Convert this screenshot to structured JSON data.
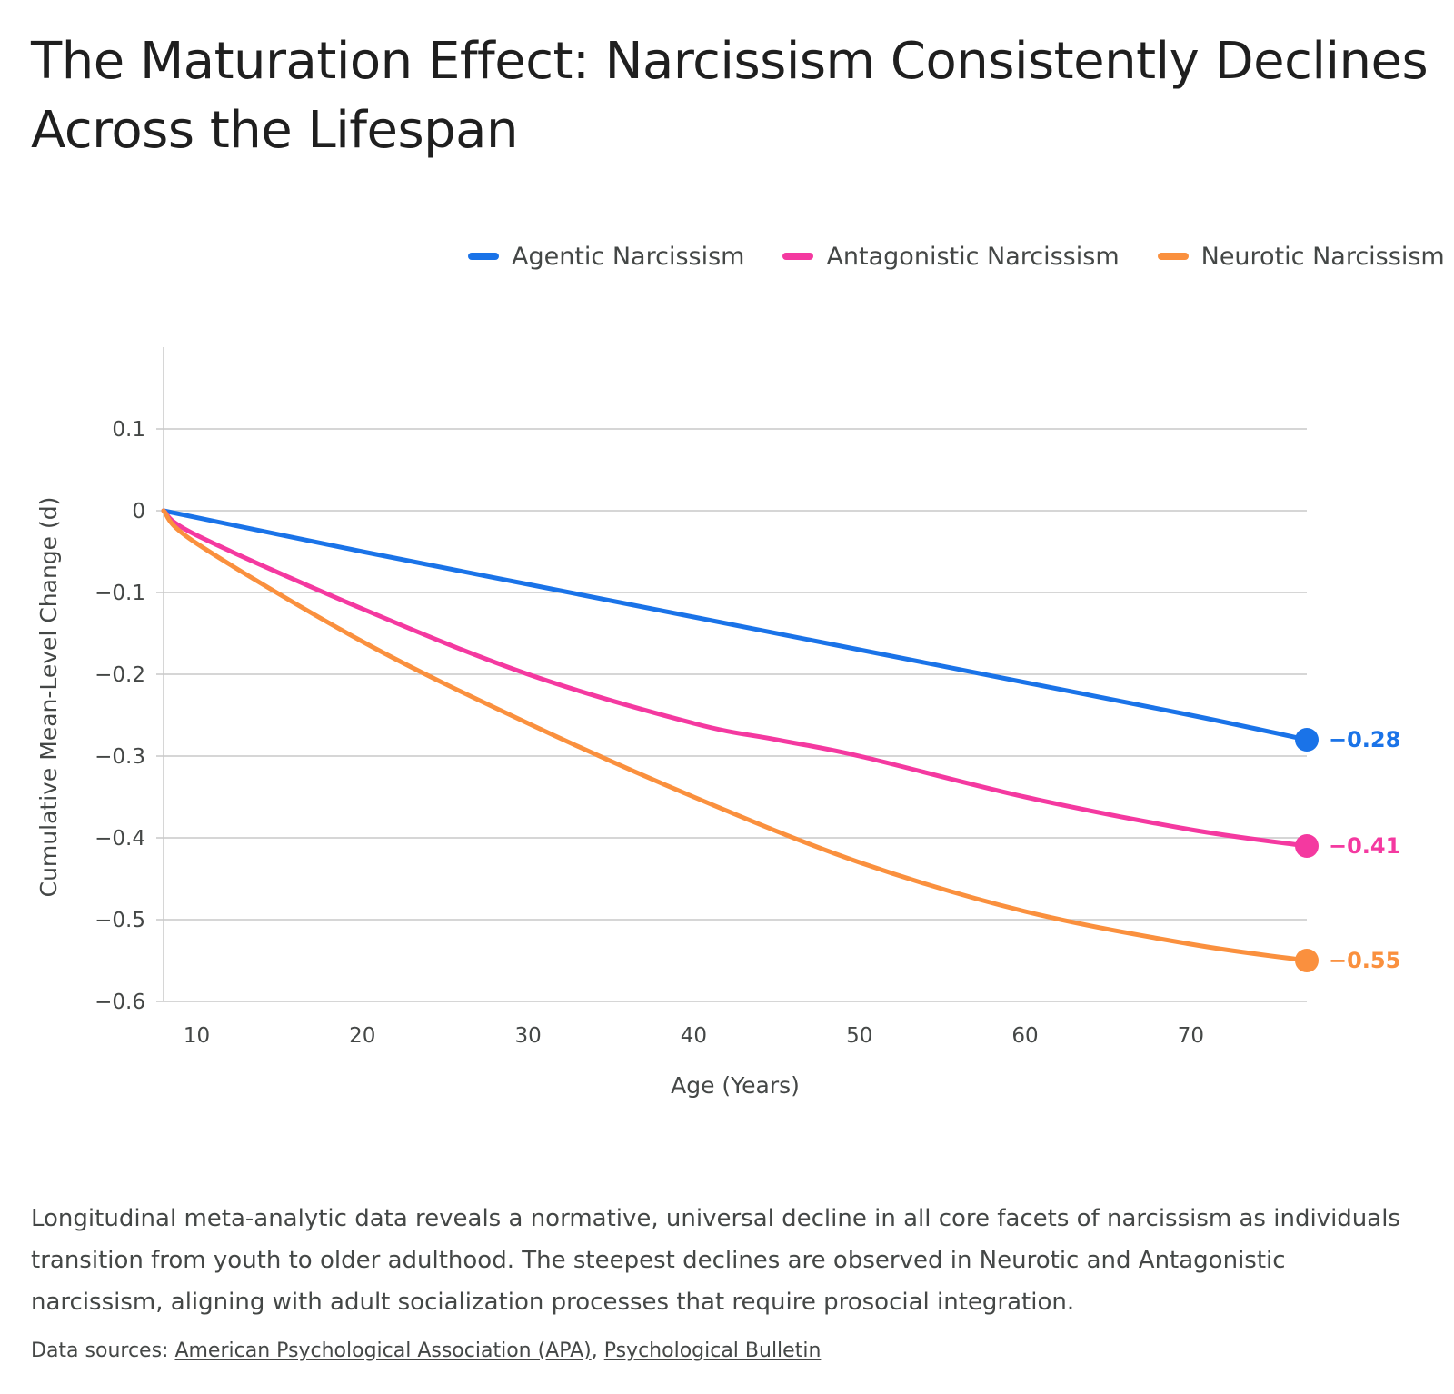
{
  "title": "The Maturation Effect: Narcissism Consistently Declines Across the Lifespan",
  "description": "Longitudinal meta-analytic data reveals a normative, universal decline in all core facets of narcissism as individuals transition from youth to older adulthood. The steepest declines are observed in Neurotic and Antagonistic narcissism, aligning with adult socialization processes that require prosocial integration.",
  "sources": {
    "prefix": "Data sources: ",
    "separator": ", ",
    "links": [
      "American Psychological Association (APA)",
      "Psychological Bulletin"
    ]
  },
  "chart_data": {
    "type": "line",
    "xlabel": "Age (Years)",
    "ylabel": "Cumulative Mean-Level Change (d)",
    "xlim": [
      8,
      77
    ],
    "ylim": [
      -0.6,
      0.2
    ],
    "x_ticks": [
      10,
      20,
      30,
      40,
      50,
      60,
      70
    ],
    "y_ticks": [
      0.1,
      0,
      -0.1,
      -0.2,
      -0.3,
      -0.4,
      -0.5,
      -0.6
    ],
    "x_tick_labels": [
      "10",
      "20",
      "30",
      "40",
      "50",
      "60",
      "70"
    ],
    "y_tick_labels": [
      "0.1",
      "0",
      "−0.1",
      "−0.2",
      "−0.3",
      "−0.4",
      "−0.5",
      "−0.6"
    ],
    "grid": true,
    "legend_position": "top-right",
    "series": [
      {
        "name": "Agentic Narcissism",
        "color": "#1a73e8",
        "x": [
          8,
          20,
          30,
          40,
          50,
          60,
          70,
          77
        ],
        "y": [
          0,
          -0.05,
          -0.09,
          -0.13,
          -0.17,
          -0.21,
          -0.25,
          -0.28
        ],
        "end_label": "−0.28"
      },
      {
        "name": "Antagonistic Narcissism",
        "color": "#f439a0",
        "x": [
          8,
          10,
          20,
          30,
          40,
          45,
          50,
          60,
          70,
          77
        ],
        "y": [
          0,
          -0.03,
          -0.12,
          -0.2,
          -0.26,
          -0.28,
          -0.3,
          -0.35,
          -0.39,
          -0.41
        ],
        "end_label": "−0.41"
      },
      {
        "name": "Neurotic Narcissism",
        "color": "#fa903e",
        "x": [
          8,
          10,
          20,
          30,
          40,
          50,
          60,
          70,
          77
        ],
        "y": [
          0,
          -0.04,
          -0.16,
          -0.26,
          -0.35,
          -0.43,
          -0.49,
          -0.53,
          -0.55
        ],
        "end_label": "−0.55"
      }
    ]
  }
}
